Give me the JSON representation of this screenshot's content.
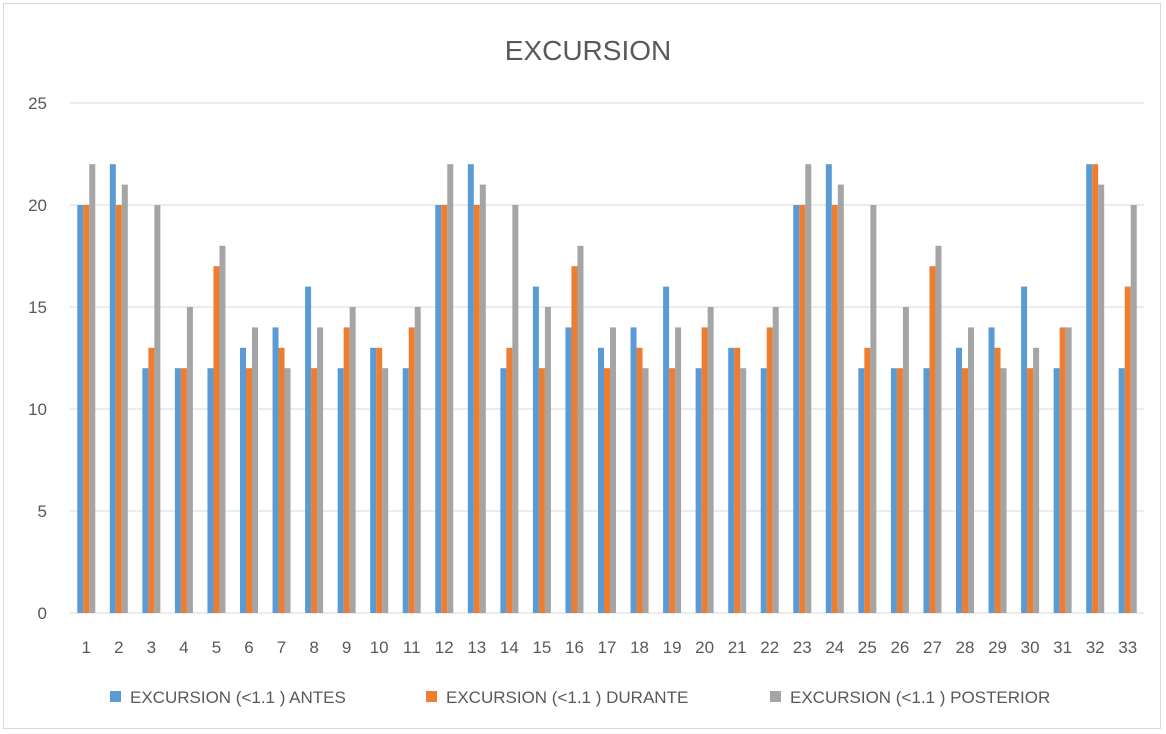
{
  "chart_data": {
    "type": "bar",
    "title": "EXCURSION",
    "xlabel": "",
    "ylabel": "",
    "ylim": [
      0,
      25
    ],
    "yticks": [
      0,
      5,
      10,
      15,
      20,
      25
    ],
    "grid": true,
    "legend_position": "bottom",
    "categories": [
      "1",
      "2",
      "3",
      "4",
      "5",
      "6",
      "7",
      "8",
      "9",
      "10",
      "11",
      "12",
      "13",
      "14",
      "15",
      "16",
      "17",
      "18",
      "19",
      "20",
      "21",
      "22",
      "23",
      "24",
      "25",
      "26",
      "27",
      "28",
      "29",
      "30",
      "31",
      "32",
      "33"
    ],
    "series": [
      {
        "name": "EXCURSION (<1.1 ) ANTES",
        "color": "#5b9bd5",
        "values": [
          20,
          22,
          12,
          12,
          12,
          13,
          14,
          16,
          12,
          13,
          12,
          20,
          22,
          12,
          16,
          14,
          13,
          14,
          16,
          12,
          13,
          12,
          20,
          22,
          12,
          12,
          12,
          13,
          14,
          16,
          12,
          22,
          12
        ]
      },
      {
        "name": "EXCURSION (<1.1 ) DURANTE",
        "color": "#ed7d31",
        "values": [
          20,
          20,
          13,
          12,
          17,
          12,
          13,
          12,
          14,
          13,
          14,
          20,
          20,
          13,
          12,
          17,
          12,
          13,
          12,
          14,
          13,
          14,
          20,
          20,
          13,
          12,
          17,
          12,
          13,
          12,
          14,
          22,
          16
        ]
      },
      {
        "name": "EXCURSION (<1.1 ) POSTERIOR",
        "color": "#a5a5a5",
        "values": [
          22,
          21,
          20,
          15,
          18,
          14,
          12,
          14,
          15,
          12,
          15,
          22,
          21,
          20,
          15,
          18,
          14,
          12,
          14,
          15,
          12,
          15,
          22,
          21,
          20,
          15,
          18,
          14,
          12,
          13,
          14,
          21,
          20
        ]
      }
    ]
  }
}
